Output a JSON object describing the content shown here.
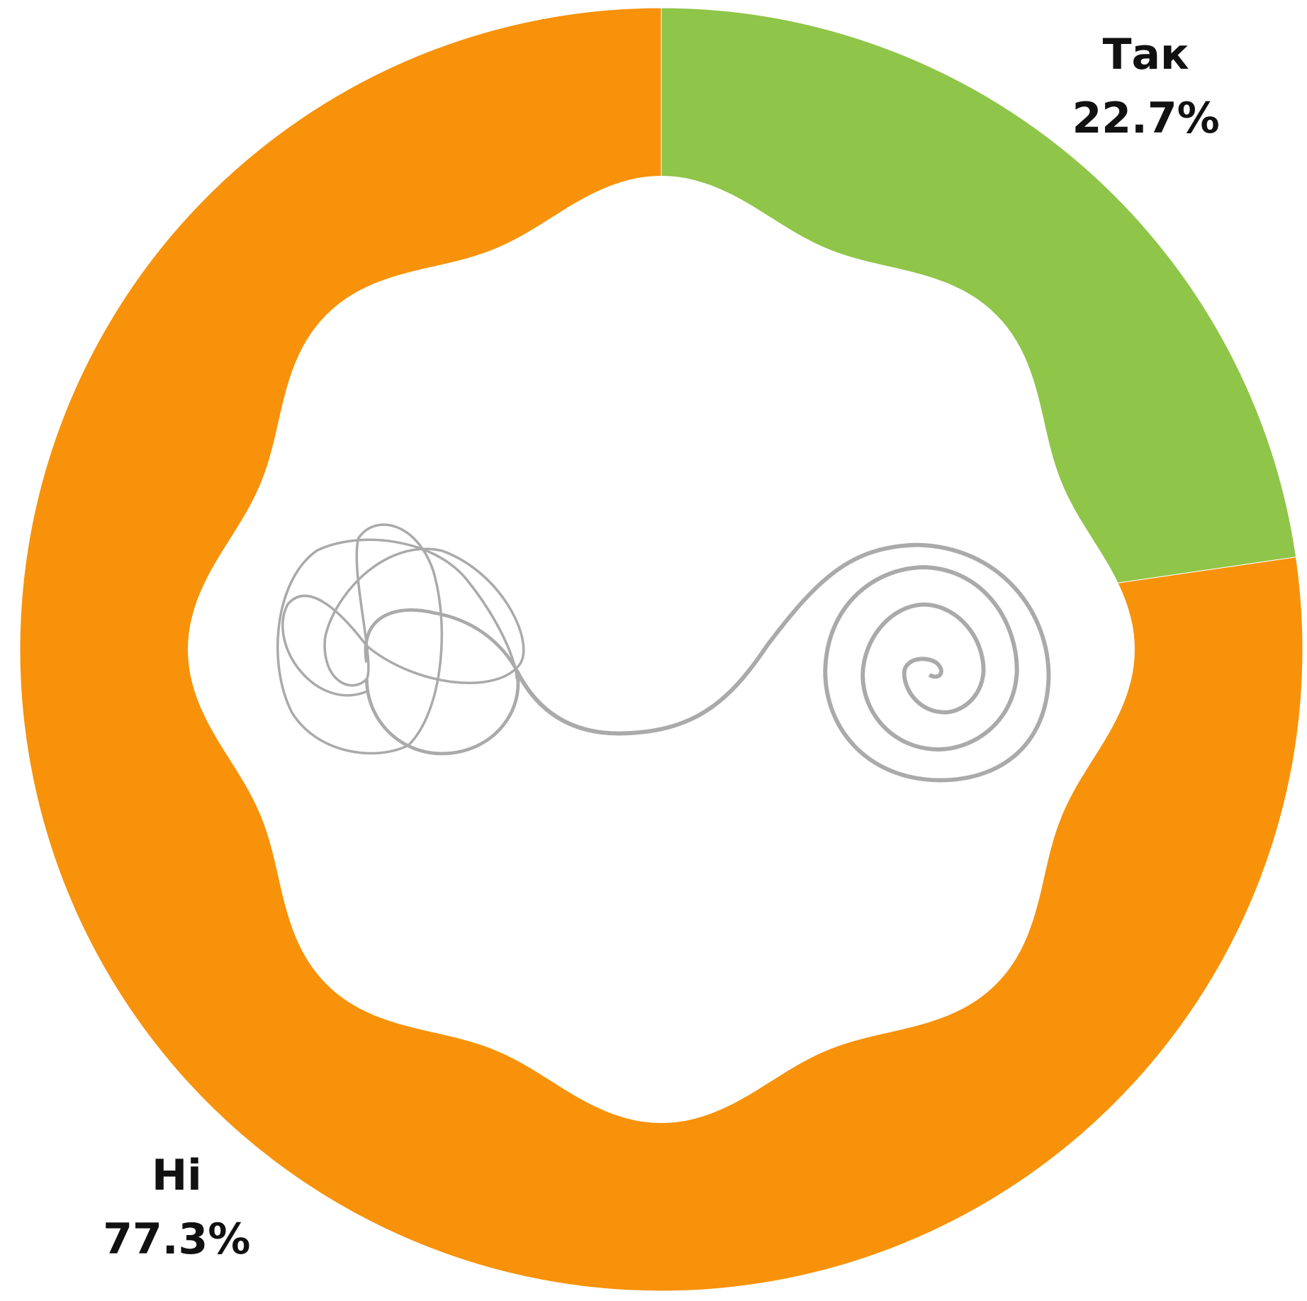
{
  "chart_data": {
    "type": "pie",
    "categories": [
      "Так",
      "Ні"
    ],
    "values": [
      22.7,
      77.3
    ],
    "value_labels": [
      "22.7%",
      "77.3%"
    ],
    "colors": [
      "#8fc549",
      "#f7920a"
    ]
  }
}
